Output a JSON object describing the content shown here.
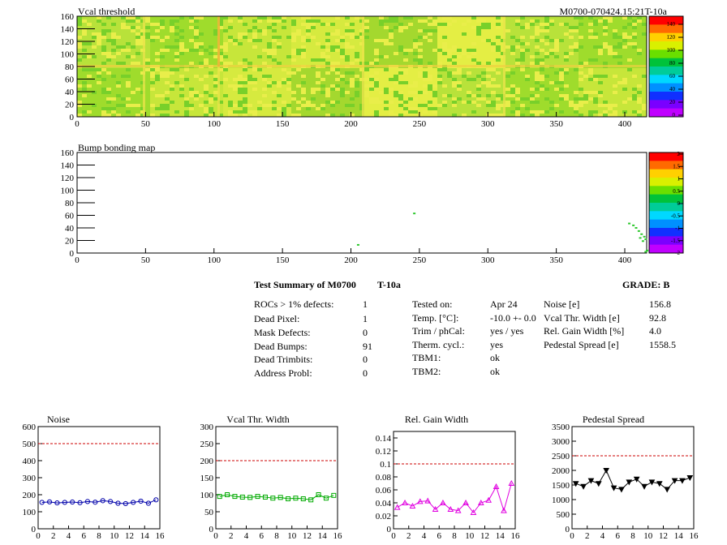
{
  "header": {
    "vcal_title": "Vcal threshold",
    "module_tag": "M0700-070424.15:21T-10a",
    "bump_title": "Bump bonding map"
  },
  "map_axes": {
    "x_ticks": [
      "0",
      "50",
      "100",
      "150",
      "200",
      "250",
      "300",
      "350",
      "400"
    ],
    "y_ticks": [
      "0",
      "20",
      "40",
      "60",
      "80",
      "100",
      "120",
      "140",
      "160"
    ],
    "xlim": [
      0,
      416
    ],
    "ylim": [
      0,
      160
    ]
  },
  "palette_vcal": {
    "labels": [
      "140",
      "120",
      "100",
      "80",
      "60",
      "40",
      "20",
      "0"
    ],
    "colors": [
      "#ff0000",
      "#ff6a00",
      "#ffd000",
      "#d9f000",
      "#6adf00",
      "#00c23a",
      "#00cc99",
      "#00d8ff",
      "#0090ff",
      "#1030ff",
      "#7a00ff",
      "#c000ff"
    ]
  },
  "palette_bump": {
    "labels": [
      "2",
      "1.5",
      "1",
      "0.5",
      "0",
      "-0.5",
      "-1",
      "-1.5",
      "-2"
    ]
  },
  "summary": {
    "title": "Test Summary of M0700",
    "temp_tag": "T-10a",
    "grade": "GRADE:  B",
    "left": [
      {
        "label": "ROCs > 1% defects:",
        "value": "1"
      },
      {
        "label": "Dead Pixel:",
        "value": "1"
      },
      {
        "label": "Mask Defects:",
        "value": "0"
      },
      {
        "label": "Dead Bumps:",
        "value": "91"
      },
      {
        "label": "Dead Trimbits:",
        "value": "0"
      },
      {
        "label": "Address Probl:",
        "value": "0"
      }
    ],
    "middle": [
      {
        "label": "Tested on:",
        "value": "Apr 24"
      },
      {
        "label": "Temp. [°C]:",
        "value": "-10.0 +- 0.0"
      },
      {
        "label": "Trim / phCal:",
        "value": "yes / yes"
      },
      {
        "label": "Therm. cycl.:",
        "value": "yes"
      },
      {
        "label": "TBM1:",
        "value": "ok"
      },
      {
        "label": "TBM2:",
        "value": "ok"
      }
    ],
    "right": [
      {
        "label": "Noise [e]",
        "value": "156.8"
      },
      {
        "label": "Vcal Thr. Width [e]",
        "value": "92.8"
      },
      {
        "label": "Rel. Gain Width [%]",
        "value": "4.0"
      },
      {
        "label": "Pedestal Spread [e]",
        "value": "1558.5"
      }
    ]
  },
  "chart_data": [
    {
      "type": "line",
      "title": "Noise",
      "color": "#0000aa",
      "marker": "circle",
      "x": [
        0,
        1,
        2,
        3,
        4,
        5,
        6,
        7,
        8,
        9,
        10,
        11,
        12,
        13,
        14,
        15
      ],
      "values": [
        155,
        158,
        152,
        155,
        157,
        153,
        160,
        156,
        165,
        160,
        150,
        148,
        155,
        162,
        150,
        170
      ],
      "x_ticks": [
        "0",
        "2",
        "4",
        "6",
        "8",
        "10",
        "12",
        "14",
        "16"
      ],
      "y_ticks": [
        "0",
        "100",
        "200",
        "300",
        "400",
        "500",
        "600"
      ],
      "xlim": [
        0,
        16
      ],
      "ylim": [
        0,
        600
      ],
      "threshold": 500
    },
    {
      "type": "line",
      "title": "Vcal Thr. Width",
      "color": "#00aa00",
      "marker": "square",
      "x": [
        0,
        1,
        2,
        3,
        4,
        5,
        6,
        7,
        8,
        9,
        10,
        11,
        12,
        13,
        14,
        15
      ],
      "values": [
        95,
        100,
        95,
        93,
        92,
        95,
        93,
        90,
        92,
        88,
        90,
        88,
        85,
        100,
        90,
        98
      ],
      "x_ticks": [
        "0",
        "2",
        "4",
        "6",
        "8",
        "10",
        "12",
        "14",
        "16"
      ],
      "y_ticks": [
        "0",
        "50",
        "100",
        "150",
        "200",
        "250",
        "300"
      ],
      "xlim": [
        0,
        16
      ],
      "ylim": [
        0,
        300
      ],
      "threshold": 200
    },
    {
      "type": "line",
      "title": "Rel. Gain Width",
      "color": "#e000e0",
      "marker": "triangle",
      "x": [
        0,
        1,
        2,
        3,
        4,
        5,
        6,
        7,
        8,
        9,
        10,
        11,
        12,
        13,
        14,
        15
      ],
      "values": [
        0.033,
        0.04,
        0.035,
        0.042,
        0.043,
        0.03,
        0.04,
        0.03,
        0.028,
        0.04,
        0.025,
        0.04,
        0.044,
        0.065,
        0.028,
        0.07
      ],
      "x_ticks": [
        "0",
        "2",
        "4",
        "6",
        "8",
        "10",
        "12",
        "14",
        "16"
      ],
      "y_ticks": [
        "0",
        "0.02",
        "0.04",
        "0.06",
        "0.08",
        "0.1",
        "0.12",
        "0.14"
      ],
      "xlim": [
        0,
        16
      ],
      "ylim": [
        0,
        0.15
      ],
      "threshold": 0.1
    },
    {
      "type": "line",
      "title": "Pedestal Spread",
      "color": "#000000",
      "marker": "down-triangle",
      "x": [
        0,
        1,
        2,
        3,
        4,
        5,
        6,
        7,
        8,
        9,
        10,
        11,
        12,
        13,
        14,
        15
      ],
      "values": [
        1550,
        1450,
        1650,
        1550,
        2000,
        1400,
        1350,
        1600,
        1700,
        1450,
        1600,
        1550,
        1350,
        1650,
        1650,
        1750
      ],
      "x_ticks": [
        "0",
        "500",
        "1000",
        "1500",
        "2000",
        "2500",
        "3000",
        "3500"
      ],
      "x_ticks_bottom": [
        "0",
        "2",
        "4",
        "6",
        "8",
        "10",
        "12",
        "14",
        "16"
      ],
      "y_ticks": [
        "0",
        "500",
        "1000",
        "1500",
        "2000",
        "2500",
        "3000",
        "3500"
      ],
      "xlim": [
        0,
        16
      ],
      "ylim": [
        0,
        3500
      ],
      "threshold": 2500
    }
  ]
}
